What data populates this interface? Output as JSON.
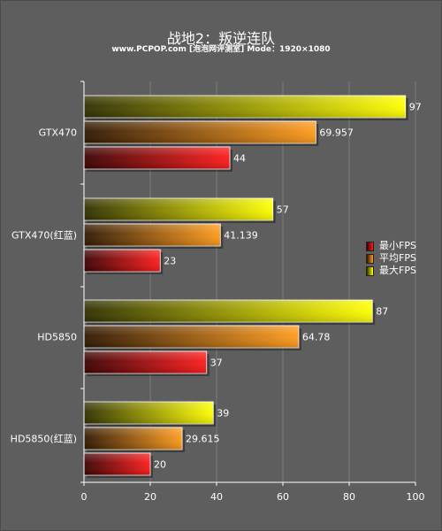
{
  "title": "战地2：叛逆连队",
  "subtitle": "www.PCPOP.com [泡泡网评测室] Mode：1920×1080",
  "chart_data": {
    "type": "bar",
    "orientation": "horizontal",
    "categories": [
      "GTX470",
      "GTX470(红蓝)",
      "HD5850",
      "HD5850(红蓝)"
    ],
    "series": [
      {
        "name": "最大FPS",
        "values": [
          97,
          57,
          87,
          39
        ],
        "value_labels": [
          "97",
          "57",
          "87",
          "39"
        ],
        "color_start": "#2e2e00",
        "color_end": "#ffff00"
      },
      {
        "name": "平均FPS",
        "values": [
          69.957,
          41.139,
          64.78,
          29.615
        ],
        "value_labels": [
          "69.957",
          "41.139",
          "64.78",
          "29.615"
        ],
        "color_start": "#2e1600",
        "color_end": "#ff9a1a"
      },
      {
        "name": "最小FPS",
        "values": [
          44,
          23,
          37,
          20
        ],
        "value_labels": [
          "44",
          "23",
          "37",
          "20"
        ],
        "color_start": "#3a0000",
        "color_end": "#ff1a1a"
      }
    ],
    "legend_order": [
      "最小FPS",
      "平均FPS",
      "最大FPS"
    ],
    "xlim": [
      0,
      100
    ],
    "xticks": [
      0,
      20,
      40,
      60,
      80,
      100
    ],
    "grid": true,
    "legend_position": "right",
    "xlabel": "",
    "ylabel": ""
  }
}
